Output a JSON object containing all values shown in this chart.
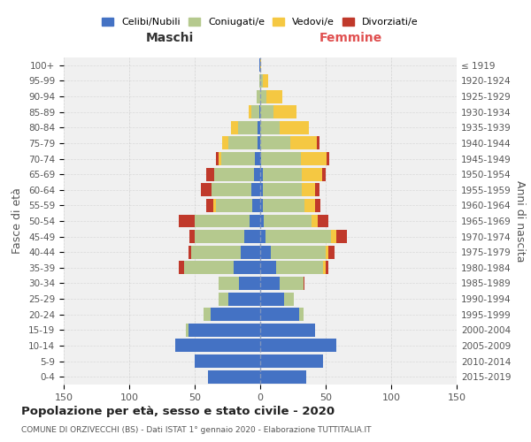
{
  "age_groups": [
    "0-4",
    "5-9",
    "10-14",
    "15-19",
    "20-24",
    "25-29",
    "30-34",
    "35-39",
    "40-44",
    "45-49",
    "50-54",
    "55-59",
    "60-64",
    "65-69",
    "70-74",
    "75-79",
    "80-84",
    "85-89",
    "90-94",
    "95-99",
    "100+"
  ],
  "birth_years": [
    "2015-2019",
    "2010-2014",
    "2005-2009",
    "2000-2004",
    "1995-1999",
    "1990-1994",
    "1985-1989",
    "1980-1984",
    "1975-1979",
    "1970-1974",
    "1965-1969",
    "1960-1964",
    "1955-1959",
    "1950-1954",
    "1945-1949",
    "1940-1944",
    "1935-1939",
    "1930-1934",
    "1925-1929",
    "1920-1924",
    "≤ 1919"
  ],
  "colors": {
    "celibi": "#4472C4",
    "coniugati": "#b5c98e",
    "vedovi": "#f5c842",
    "divorziati": "#c0392b"
  },
  "maschi": {
    "celibi": [
      40,
      50,
      65,
      55,
      38,
      24,
      16,
      20,
      15,
      12,
      8,
      6,
      7,
      5,
      4,
      2,
      2,
      1,
      0,
      0,
      1
    ],
    "coniugati": [
      0,
      0,
      0,
      2,
      5,
      8,
      16,
      38,
      38,
      38,
      42,
      28,
      30,
      30,
      26,
      22,
      15,
      6,
      3,
      1,
      0
    ],
    "vedovi": [
      0,
      0,
      0,
      0,
      0,
      0,
      0,
      0,
      0,
      0,
      0,
      2,
      0,
      0,
      2,
      5,
      5,
      2,
      0,
      0,
      0
    ],
    "divorziati": [
      0,
      0,
      0,
      0,
      0,
      0,
      0,
      4,
      2,
      4,
      12,
      5,
      8,
      6,
      2,
      0,
      0,
      0,
      0,
      0,
      0
    ]
  },
  "femmine": {
    "celibi": [
      35,
      48,
      58,
      42,
      30,
      18,
      15,
      12,
      8,
      4,
      3,
      2,
      2,
      2,
      1,
      0,
      0,
      0,
      0,
      0,
      0
    ],
    "coniugati": [
      0,
      0,
      0,
      0,
      3,
      8,
      18,
      36,
      42,
      50,
      36,
      32,
      30,
      30,
      30,
      23,
      15,
      10,
      5,
      2,
      0
    ],
    "vedovi": [
      0,
      0,
      0,
      0,
      0,
      0,
      0,
      2,
      2,
      4,
      5,
      8,
      10,
      15,
      20,
      20,
      22,
      18,
      12,
      4,
      1
    ],
    "divorziati": [
      0,
      0,
      0,
      0,
      0,
      0,
      1,
      2,
      5,
      8,
      8,
      4,
      3,
      3,
      2,
      2,
      0,
      0,
      0,
      0,
      0
    ]
  },
  "title": "Popolazione per età, sesso e stato civile - 2020",
  "subtitle": "COMUNE DI ORZIVECCHI (BS) - Dati ISTAT 1° gennaio 2020 - Elaborazione TUTTITALIA.IT",
  "xlabel_left": "Maschi",
  "xlabel_right": "Femmine",
  "ylabel": "Fasce di età",
  "ylabel_right": "Anni di nascita",
  "xlim": 150,
  "legend_labels": [
    "Celibi/Nubili",
    "Coniugati/e",
    "Vedovi/e",
    "Divorziati/e"
  ],
  "bg_color": "#f0f0f0",
  "grid_color": "#cccccc"
}
